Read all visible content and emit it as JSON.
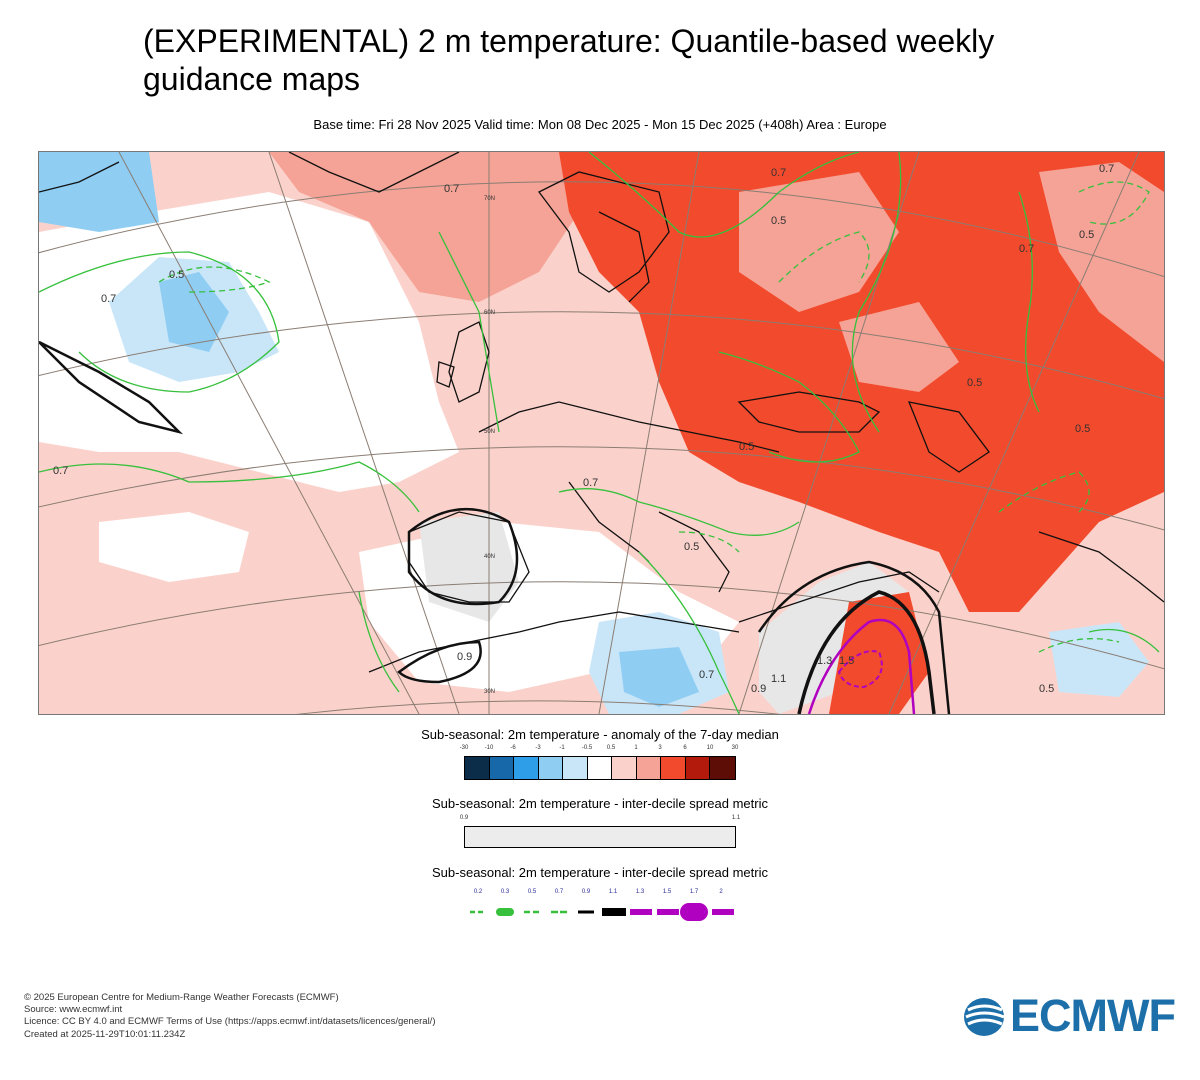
{
  "header": {
    "title": "(EXPERIMENTAL) 2 m temperature: Quantile-based weekly guidance maps",
    "subtitle": "Base time: Fri 28 Nov 2025 Valid time: Mon 08 Dec 2025 - Mon 15 Dec 2025 (+408h) Area : Europe"
  },
  "map": {
    "area": "Europe",
    "latitude_labels": [
      "70N",
      "60N",
      "50N",
      "40N",
      "30N"
    ],
    "contour_labels": [
      "0.5",
      "0.7",
      "0.7",
      "0.7",
      "0.5",
      "0.7",
      "0.7",
      "0.5",
      "0.5",
      "0.7",
      "0.5",
      "0.5",
      "0.7",
      "0.5",
      "0.9",
      "1.1",
      "1.3",
      "1.5",
      "0.7",
      "0.5",
      "0.9"
    ],
    "colors": {
      "strong_warm": "#f24a2c",
      "warm": "#f5a396",
      "slight_warm": "#fbd2cb",
      "slight_cold": "#c9e6f9",
      "cold": "#8fcdf3",
      "spread_grey": "#e7e7e7",
      "green_contour": "#36c03c",
      "magenta_contour": "#b000c0"
    }
  },
  "legend_anomaly": {
    "title": "Sub-seasonal: 2m temperature - anomaly of the 7-day median",
    "ticks": [
      "-30",
      "-10",
      "-6",
      "-3",
      "-1",
      "-0.5",
      "0.5",
      "1",
      "3",
      "6",
      "10",
      "30"
    ],
    "colors": [
      "#0b2d4a",
      "#1768a8",
      "#2f9ee8",
      "#8fcdf3",
      "#c9e6f9",
      "#ffffff",
      "#fbd2cb",
      "#f5a396",
      "#f24a2c",
      "#b31a0c",
      "#5e0c06"
    ]
  },
  "legend_spread_shade": {
    "title": "Sub-seasonal: 2m temperature - inter-decile spread metric",
    "ticks": [
      "0.9",
      "1.1"
    ]
  },
  "legend_spread_lines": {
    "title": "Sub-seasonal: 2m temperature - inter-decile spread metric",
    "ticks": [
      "0.2",
      "0.3",
      "0.5",
      "0.7",
      "0.9",
      "1.1",
      "1.3",
      "1.5",
      "1.7",
      "2"
    ]
  },
  "footer": {
    "copyright": "© 2025 European Centre for Medium-Range Weather Forecasts (ECMWF)",
    "source": "Source: www.ecmwf.int",
    "licence": "Licence: CC BY 4.0 and ECMWF Terms of Use (https://apps.ecmwf.int/datasets/licences/general/)",
    "created": "Created at 2025-11-29T10:01:11.234Z"
  },
  "logo": {
    "text": "ECMWF",
    "color": "#1d6fa9"
  }
}
